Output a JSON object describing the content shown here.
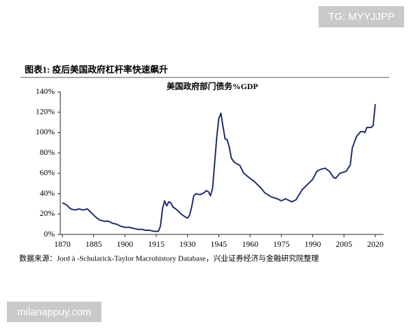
{
  "watermark_top": "TG: MYYJJPP",
  "figure_title": "图表1: 疫后美国政府杠杆率快速飙升",
  "source": "数据来源：Jord à -Schularick-Taylor Macrohistory Database，兴业证券经济与金融研究院整理",
  "watermark_bottom": "milanappuy.com",
  "chart_data": {
    "type": "line",
    "title": "美国政府部门债务%GDP",
    "series": [
      {
        "name": "美国政府部门债务%GDP",
        "color": "#1f2d6b",
        "x": [
          1870,
          1872,
          1874,
          1876,
          1878,
          1880,
          1882,
          1884,
          1886,
          1888,
          1890,
          1892,
          1894,
          1896,
          1898,
          1900,
          1902,
          1904,
          1906,
          1908,
          1910,
          1912,
          1914,
          1916,
          1917,
          1918,
          1919,
          1920,
          1921,
          1922,
          1923,
          1925,
          1927,
          1929,
          1930,
          1931,
          1932,
          1933,
          1934,
          1936,
          1938,
          1939,
          1940,
          1941,
          1942,
          1943,
          1944,
          1945,
          1946,
          1947,
          1948,
          1949,
          1950,
          1951,
          1952,
          1953,
          1955,
          1957,
          1960,
          1962,
          1965,
          1967,
          1970,
          1973,
          1975,
          1977,
          1980,
          1982,
          1985,
          1988,
          1990,
          1992,
          1994,
          1996,
          1998,
          2000,
          2001,
          2003,
          2006,
          2008,
          2009,
          2011,
          2013,
          2014,
          2015,
          2016,
          2018,
          2019,
          2020
        ],
        "values": [
          31,
          29,
          25,
          24,
          25,
          24,
          25,
          21,
          17,
          14,
          13,
          13,
          11,
          10,
          8,
          7,
          7,
          6,
          5,
          5,
          4,
          4,
          3,
          3,
          8,
          25,
          33,
          28,
          32,
          31,
          27,
          24,
          20,
          17,
          16,
          19,
          27,
          38,
          40,
          39,
          41,
          43,
          42,
          38,
          45,
          70,
          95,
          114,
          119,
          106,
          94,
          93,
          86,
          75,
          72,
          70,
          68,
          60,
          55,
          52,
          46,
          41,
          37,
          35,
          33,
          35,
          32,
          34,
          44,
          50,
          54,
          62,
          64,
          65,
          62,
          56,
          55,
          60,
          62,
          68,
          85,
          96,
          101,
          101,
          100,
          105,
          105,
          107,
          128
        ]
      }
    ],
    "xlim": [
      1869,
      2024
    ],
    "xticks": [
      1870,
      1885,
      1900,
      1915,
      1930,
      1945,
      1960,
      1975,
      1990,
      2005,
      2020
    ],
    "ylim": [
      0,
      140
    ],
    "yticks": [
      {
        "value": 0,
        "label": "0%"
      },
      {
        "value": 20,
        "label": "20%"
      },
      {
        "value": 40,
        "label": "40%"
      },
      {
        "value": 60,
        "label": "60%"
      },
      {
        "value": 80,
        "label": "80%"
      },
      {
        "value": 100,
        "label": "100%"
      },
      {
        "value": 120,
        "label": "120%"
      },
      {
        "value": 140,
        "label": "140%"
      }
    ],
    "grid": false
  }
}
